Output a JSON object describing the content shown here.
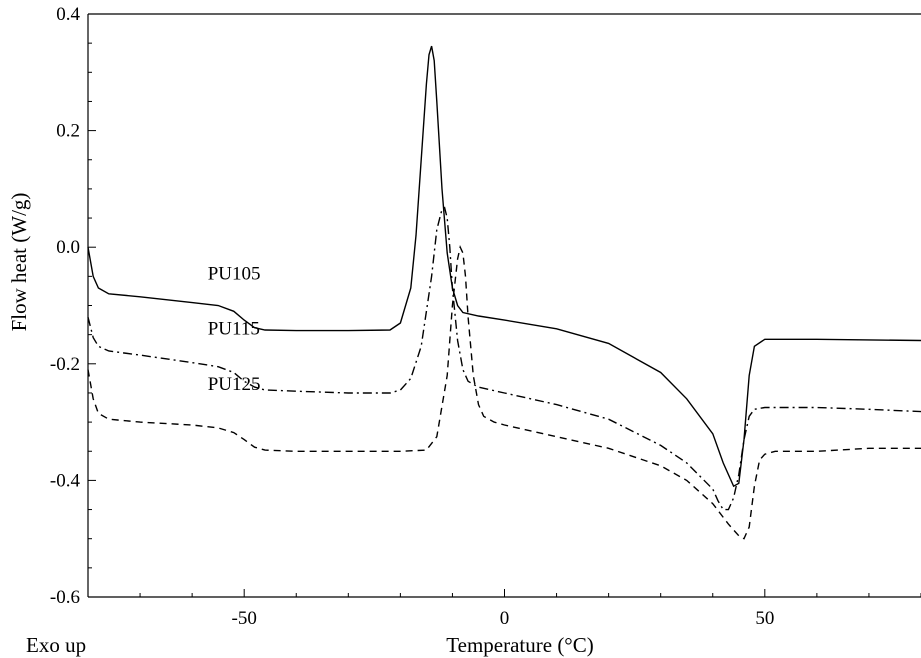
{
  "chart_data": {
    "type": "line",
    "title": "",
    "xlabel": "Temperature (°C)",
    "ylabel": "Flow heat (W/g)",
    "corner_note": "Exo up",
    "xlim": [
      -80,
      80
    ],
    "ylim": [
      -0.6,
      0.4
    ],
    "x_ticks": [
      -50,
      0,
      50
    ],
    "x_tick_labels": [
      "-50",
      "0",
      "50"
    ],
    "y_ticks": [
      -0.6,
      -0.4,
      -0.2,
      0.0,
      0.2,
      0.4
    ],
    "y_tick_labels": [
      "-0.6",
      "-0.4",
      "-0.2",
      "0.0",
      "0.2",
      "0.4"
    ],
    "grid": false,
    "series": [
      {
        "name": "PU105",
        "dash": "solid",
        "x": [
          -80,
          -79,
          -78,
          -76,
          -70,
          -60,
          -55,
          -52,
          -50,
          -48,
          -46,
          -40,
          -30,
          -22,
          -20,
          -18,
          -17,
          -16,
          -15,
          -14.5,
          -14,
          -13.5,
          -13,
          -12,
          -11,
          -10,
          -9,
          -8,
          -5,
          0,
          10,
          20,
          30,
          35,
          40,
          42,
          44,
          45,
          46,
          47,
          48,
          50,
          60,
          70,
          80
        ],
        "y": [
          0.0,
          -0.05,
          -0.07,
          -0.08,
          -0.085,
          -0.095,
          -0.1,
          -0.11,
          -0.125,
          -0.138,
          -0.142,
          -0.143,
          -0.143,
          -0.142,
          -0.13,
          -0.07,
          0.02,
          0.15,
          0.28,
          0.33,
          0.345,
          0.32,
          0.25,
          0.1,
          -0.01,
          -0.07,
          -0.1,
          -0.112,
          -0.118,
          -0.125,
          -0.14,
          -0.165,
          -0.215,
          -0.26,
          -0.32,
          -0.37,
          -0.41,
          -0.405,
          -0.33,
          -0.22,
          -0.17,
          -0.158,
          -0.158,
          -0.159,
          -0.16
        ]
      },
      {
        "name": "PU115",
        "dash": "dashdot",
        "x": [
          -80,
          -79,
          -78,
          -76,
          -70,
          -60,
          -55,
          -52,
          -50,
          -48,
          -46,
          -40,
          -30,
          -22,
          -20,
          -18,
          -16,
          -14,
          -13,
          -12,
          -11.5,
          -11,
          -10.5,
          -10,
          -9,
          -8,
          -7,
          -5,
          0,
          10,
          20,
          30,
          35,
          40,
          41,
          42,
          43,
          44,
          45,
          46,
          47,
          48,
          50,
          60,
          70,
          80
        ],
        "y": [
          -0.12,
          -0.155,
          -0.17,
          -0.178,
          -0.185,
          -0.198,
          -0.205,
          -0.215,
          -0.23,
          -0.24,
          -0.245,
          -0.247,
          -0.25,
          -0.25,
          -0.245,
          -0.225,
          -0.17,
          -0.05,
          0.03,
          0.065,
          0.068,
          0.05,
          0.0,
          -0.07,
          -0.16,
          -0.21,
          -0.23,
          -0.24,
          -0.25,
          -0.27,
          -0.295,
          -0.34,
          -0.37,
          -0.415,
          -0.435,
          -0.45,
          -0.45,
          -0.43,
          -0.39,
          -0.33,
          -0.29,
          -0.278,
          -0.275,
          -0.275,
          -0.278,
          -0.282
        ]
      },
      {
        "name": "PU125",
        "dash": "dashed",
        "x": [
          -80,
          -79,
          -78,
          -76,
          -70,
          -60,
          -55,
          -52,
          -50,
          -48,
          -46,
          -40,
          -30,
          -20,
          -15,
          -13,
          -11,
          -10,
          -9,
          -8.5,
          -8,
          -7.5,
          -7,
          -6,
          -5,
          -4,
          -2,
          0,
          10,
          20,
          30,
          35,
          40,
          43,
          45,
          46,
          47,
          48,
          49,
          50,
          52,
          60,
          70,
          80
        ],
        "y": [
          -0.21,
          -0.26,
          -0.285,
          -0.295,
          -0.3,
          -0.305,
          -0.31,
          -0.318,
          -0.33,
          -0.343,
          -0.348,
          -0.35,
          -0.35,
          -0.35,
          -0.348,
          -0.325,
          -0.22,
          -0.1,
          -0.02,
          0.0,
          -0.01,
          -0.05,
          -0.12,
          -0.22,
          -0.27,
          -0.29,
          -0.3,
          -0.305,
          -0.325,
          -0.345,
          -0.375,
          -0.4,
          -0.44,
          -0.475,
          -0.495,
          -0.5,
          -0.48,
          -0.41,
          -0.365,
          -0.355,
          -0.35,
          -0.35,
          -0.345,
          -0.345
        ]
      }
    ],
    "annotations": [
      {
        "text": "PU105",
        "x": -57,
        "y": -0.055
      },
      {
        "text": "PU115",
        "x": -57,
        "y": -0.15
      },
      {
        "text": "PU125",
        "x": -57,
        "y": -0.245
      }
    ]
  }
}
